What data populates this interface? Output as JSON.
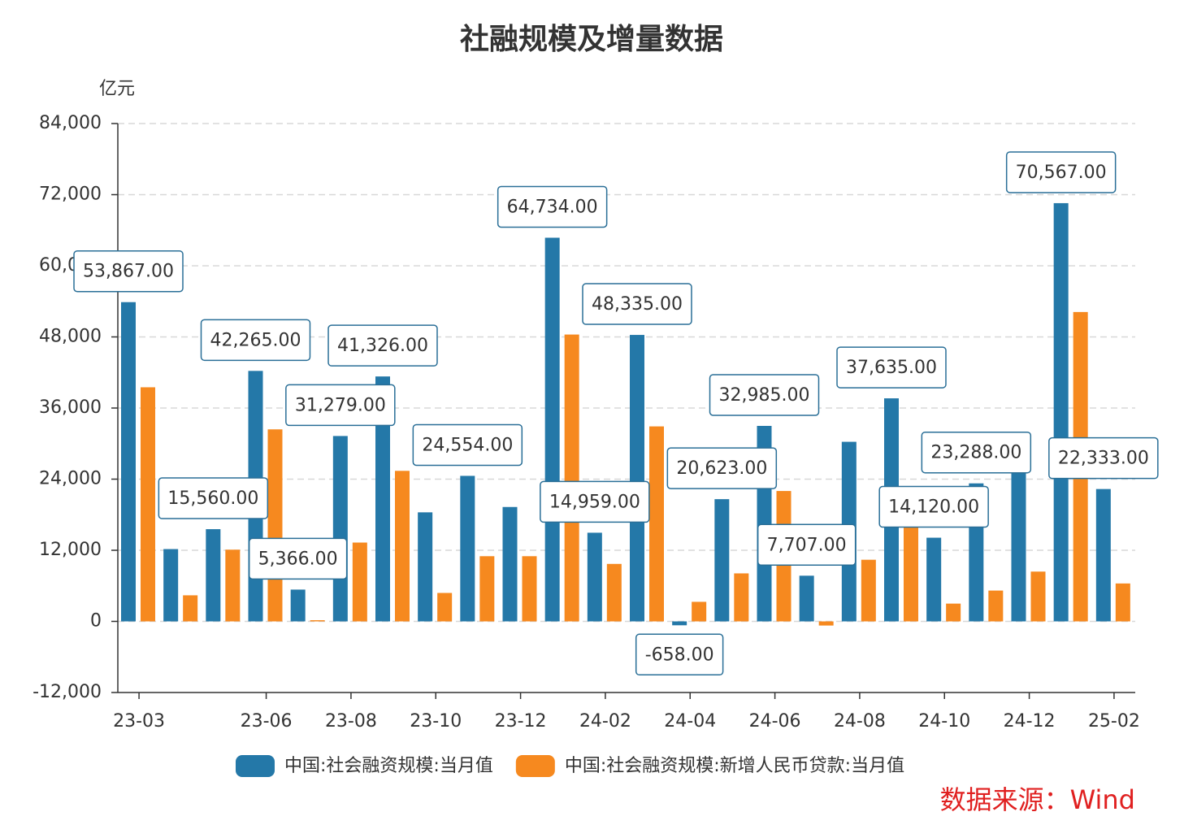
{
  "chart_data": {
    "type": "bar",
    "title": "社融规模及增量数据",
    "y_axis_label": "亿元",
    "categories": [
      "23-03",
      null,
      null,
      "23-06",
      null,
      "23-08",
      null,
      "23-10",
      null,
      "23-12",
      null,
      "24-02",
      null,
      "24-04",
      null,
      "24-06",
      null,
      "24-08",
      null,
      "24-10",
      null,
      "24-12",
      null,
      "25-02"
    ],
    "series": [
      {
        "name": "中国:社会融资规模:当月值",
        "color": "#2478a8",
        "values": [
          53867,
          12200,
          15560,
          42265,
          5366,
          31279,
          41326,
          18400,
          24554,
          19300,
          64734,
          14959,
          48335,
          -658,
          20623,
          32985,
          7707,
          30300,
          37635,
          14120,
          23288,
          28500,
          70567,
          22333
        ],
        "value_labels": [
          "53,867.00",
          null,
          "15,560.00",
          "42,265.00",
          "5,366.00",
          "31,279.00",
          "41,326.00",
          null,
          "24,554.00",
          null,
          "64,734.00",
          "14,959.00",
          "48,335.00",
          "-658.00",
          "20,623.00",
          "32,985.00",
          "7,707.00",
          null,
          "37,635.00",
          "14,120.00",
          "23,288.00",
          null,
          "70,567.00",
          "22,333.00"
        ]
      },
      {
        "name": "中国:社会融资规模:新增人民币贷款:当月值",
        "color": "#f6891f",
        "values": [
          39500,
          4400,
          12100,
          32400,
          200,
          13300,
          25400,
          4800,
          11000,
          11000,
          48400,
          9700,
          32900,
          3300,
          8100,
          22000,
          -700,
          10400,
          16000,
          3000,
          5200,
          8400,
          52200,
          6400
        ]
      }
    ],
    "ylim": [
      -12000,
      84000
    ],
    "yticks": [
      {
        "value": -12000,
        "label": "-12,000"
      },
      0,
      {
        "value": 12000,
        "label": "12,000"
      },
      {
        "value": 24000,
        "label": "24,000"
      },
      {
        "value": 36000,
        "label": "36,000"
      },
      {
        "value": 48000,
        "label": "48,000"
      },
      {
        "value": 60000,
        "label": "60,000"
      },
      {
        "value": 72000,
        "label": "72,000"
      },
      {
        "value": 84000,
        "label": "84,000"
      }
    ],
    "grid": true,
    "legend": "bottom",
    "source": "数据来源：Wind"
  }
}
